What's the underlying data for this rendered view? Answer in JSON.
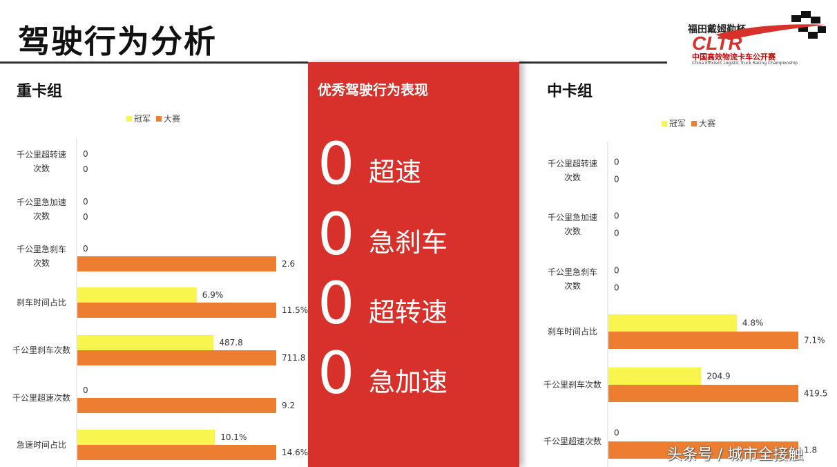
{
  "page": {
    "title": "驾驶行为分析",
    "watermark": "头条号 / 城市全接触"
  },
  "logo": {
    "name_cn": "福田戴姆勒杯",
    "wordmark": "CLTR",
    "subtitle_cn": "中国高效物流卡车公开赛",
    "subtitle_en": "China Efficient Logistic Truck Racing Championship",
    "colors": {
      "red": "#d8302a",
      "black": "#111111"
    }
  },
  "colors": {
    "champion": "#f7f54e",
    "contest": "#ed7d31",
    "panel": "#d8302a"
  },
  "center_panel": {
    "title": "优秀驾驶行为表现",
    "items": [
      {
        "value": "0",
        "label": "超速"
      },
      {
        "value": "0",
        "label": "急刹车"
      },
      {
        "value": "0",
        "label": "超转速"
      },
      {
        "value": "0",
        "label": "急加速"
      }
    ]
  },
  "chart_data": [
    {
      "type": "bar",
      "orientation": "horizontal",
      "group_title": "重卡组",
      "title": "",
      "legend": {
        "position": "top"
      },
      "categories": [
        "千公里超转速次数",
        "千公里急加速次数",
        "千公里急刹车次数",
        "刹车时间占比",
        "千公里刹车次数",
        "千公里超速次数",
        "急速时间占比"
      ],
      "series": [
        {
          "name": "冠军",
          "values": [
            0,
            0,
            0,
            6.9,
            487.8,
            0,
            10.1
          ],
          "labels": [
            "0",
            "0",
            "0",
            "6.9%",
            "487.8",
            "0",
            "10.1%"
          ]
        },
        {
          "name": "大赛",
          "values": [
            0,
            0,
            2.6,
            11.5,
            711.8,
            9.2,
            14.6
          ],
          "labels": [
            "0",
            "0",
            "2.6",
            "11.5%",
            "711.8",
            "9.2",
            "14.6%"
          ]
        }
      ],
      "note": "bars are scaled independently per category row"
    },
    {
      "type": "bar",
      "orientation": "horizontal",
      "group_title": "中卡组",
      "title": "",
      "legend": {
        "position": "top"
      },
      "categories": [
        "千公里超转速次数",
        "千公里急加速次数",
        "千公里急刹车次数",
        "刹车时间占比",
        "千公里刹车次数",
        "千公里超速次数"
      ],
      "series": [
        {
          "name": "冠军",
          "values": [
            0,
            0,
            0,
            4.8,
            204.9,
            0
          ],
          "labels": [
            "0",
            "0",
            "0",
            "4.8%",
            "204.9",
            "0"
          ]
        },
        {
          "name": "大赛",
          "values": [
            0,
            0,
            0,
            7.1,
            419.5,
            1.8
          ],
          "labels": [
            "0",
            "0",
            "0",
            "7.1%",
            "419.5",
            "1.8"
          ]
        }
      ],
      "note": "bars are scaled independently per category row"
    }
  ]
}
